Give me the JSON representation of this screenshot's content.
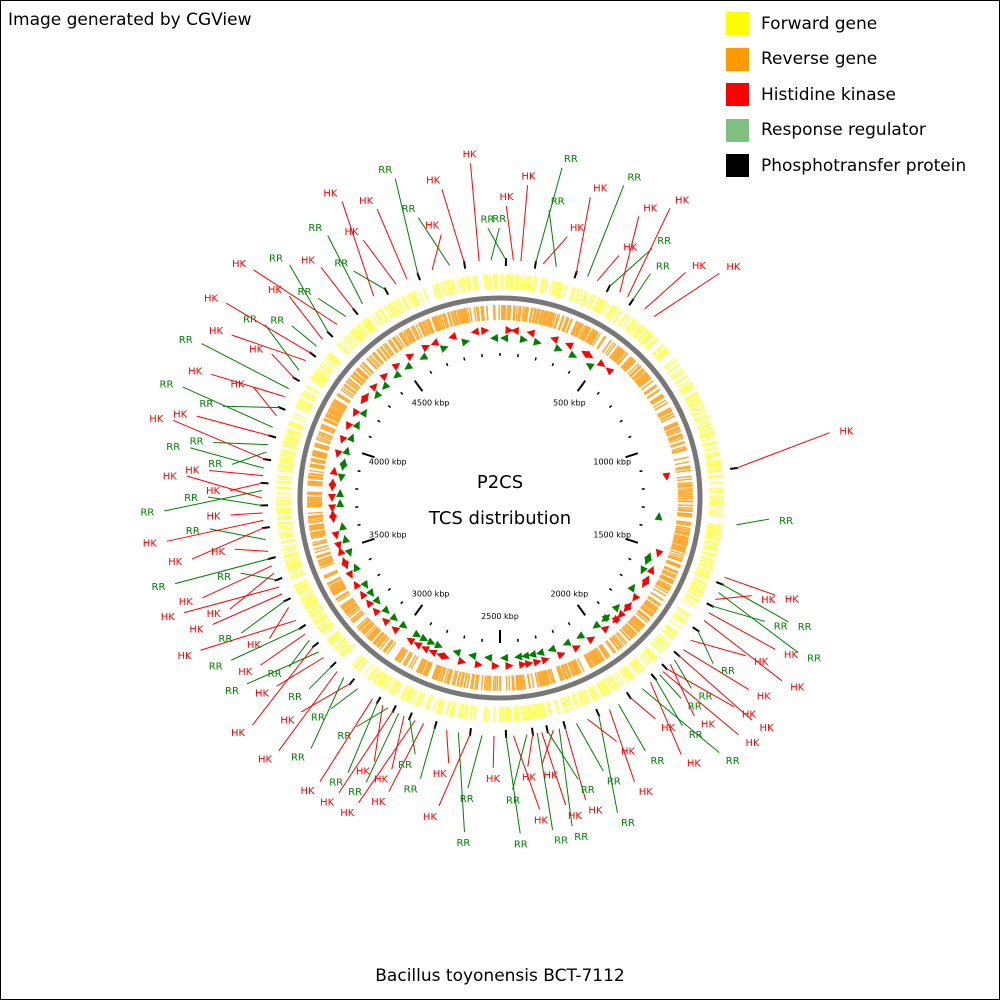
{
  "credit": "Image generated by CGView",
  "legend": [
    {
      "label": "Forward gene",
      "color": "#ffff00"
    },
    {
      "label": "Reverse gene",
      "color": "#ff9900"
    },
    {
      "label": "Histidine kinase",
      "color": "#ff0000"
    },
    {
      "label": "Response regulator",
      "color": "#7fbf7f"
    },
    {
      "label": "Phosphotransfer protein",
      "color": "#000000"
    }
  ],
  "center_title": [
    "P2CS",
    "TCS distribution"
  ],
  "caption": "Bacillus toyonensis BCT-7112",
  "colors": {
    "forward": "#ffff66",
    "reverse": "#ffaa33",
    "backbone": "#777777",
    "hk": "#ff0000",
    "rr": "#008000",
    "hk_arrow": "#ff0000",
    "rr_arrow": "#008000"
  },
  "genome": {
    "length_kbp": 5000,
    "ticks_kbp": [
      500,
      1000,
      1500,
      2000,
      2500,
      3000,
      3500,
      4000,
      4500
    ],
    "tick_unit": "kbp"
  },
  "features": [
    {
      "type": "RR",
      "kbp": 20
    },
    {
      "type": "HK",
      "kbp": 45
    },
    {
      "type": "HK",
      "kbp": 70
    },
    {
      "type": "RR",
      "kbp": 120
    },
    {
      "type": "HK",
      "kbp": 145
    },
    {
      "type": "RR",
      "kbp": 190
    },
    {
      "type": "HK",
      "kbp": 260
    },
    {
      "type": "RR",
      "kbp": 300
    },
    {
      "type": "HK",
      "kbp": 335
    },
    {
      "type": "RR",
      "kbp": 380
    },
    {
      "type": "HK",
      "kbp": 420
    },
    {
      "type": "HK",
      "kbp": 450
    },
    {
      "type": "RR",
      "kbp": 470
    },
    {
      "type": "HK",
      "kbp": 520
    },
    {
      "type": "HK",
      "kbp": 560
    },
    {
      "type": "HK",
      "kbp": 1150
    },
    {
      "type": "RR",
      "kbp": 1340
    },
    {
      "type": "HK",
      "kbp": 1520
    },
    {
      "type": "RR",
      "kbp": 1545
    },
    {
      "type": "RR",
      "kbp": 1575
    },
    {
      "type": "HK",
      "kbp": 1600
    },
    {
      "type": "RR",
      "kbp": 1625
    },
    {
      "type": "HK",
      "kbp": 1650
    },
    {
      "type": "HK",
      "kbp": 1680
    },
    {
      "type": "RR",
      "kbp": 1720
    },
    {
      "type": "HK",
      "kbp": 1760
    },
    {
      "type": "HK",
      "kbp": 1800
    },
    {
      "type": "HK",
      "kbp": 1825
    },
    {
      "type": "RR",
      "kbp": 1845
    },
    {
      "type": "HK",
      "kbp": 1865
    },
    {
      "type": "HK",
      "kbp": 1885
    },
    {
      "type": "HK",
      "kbp": 1900
    },
    {
      "type": "RR",
      "kbp": 1915
    },
    {
      "type": "RR",
      "kbp": 1935
    },
    {
      "type": "HK",
      "kbp": 1955
    },
    {
      "type": "RR",
      "kbp": 1990
    },
    {
      "type": "HK",
      "kbp": 2040
    },
    {
      "type": "RR",
      "kbp": 2085
    },
    {
      "type": "HK",
      "kbp": 2120
    },
    {
      "type": "RR",
      "kbp": 2160
    },
    {
      "type": "HK",
      "kbp": 2200
    },
    {
      "type": "RR",
      "kbp": 2240
    },
    {
      "type": "HK",
      "kbp": 2280
    },
    {
      "type": "RR",
      "kbp": 2300
    },
    {
      "type": "HK",
      "kbp": 2320
    },
    {
      "type": "RR",
      "kbp": 2340
    },
    {
      "type": "HK",
      "kbp": 2360
    },
    {
      "type": "RR",
      "kbp": 2375
    },
    {
      "type": "HK",
      "kbp": 2390
    },
    {
      "type": "RR",
      "kbp": 2410
    },
    {
      "type": "HK",
      "kbp": 2455
    },
    {
      "type": "RR",
      "kbp": 2480
    },
    {
      "type": "HK",
      "kbp": 2520
    },
    {
      "type": "RR",
      "kbp": 2560
    },
    {
      "type": "HK",
      "kbp": 2600
    },
    {
      "type": "RR",
      "kbp": 2640
    },
    {
      "type": "HK",
      "kbp": 2680
    },
    {
      "type": "RR",
      "kbp": 2720
    },
    {
      "type": "HK",
      "kbp": 2760
    },
    {
      "type": "HK",
      "kbp": 2790
    },
    {
      "type": "RR",
      "kbp": 2810
    },
    {
      "type": "HK",
      "kbp": 2830
    },
    {
      "type": "RR",
      "kbp": 2850
    },
    {
      "type": "HK",
      "kbp": 2870
    },
    {
      "type": "RR",
      "kbp": 2890
    },
    {
      "type": "HK",
      "kbp": 2910
    },
    {
      "type": "RR",
      "kbp": 2930
    },
    {
      "type": "HK",
      "kbp": 2950
    },
    {
      "type": "RR",
      "kbp": 3010
    },
    {
      "type": "HK",
      "kbp": 3040
    },
    {
      "type": "RR",
      "kbp": 3070
    },
    {
      "type": "HK",
      "kbp": 3100
    },
    {
      "type": "RR",
      "kbp": 3125
    },
    {
      "type": "HK",
      "kbp": 3165
    },
    {
      "type": "RR",
      "kbp": 3190
    },
    {
      "type": "HK",
      "kbp": 3215
    },
    {
      "type": "RR",
      "kbp": 3240
    },
    {
      "type": "HK",
      "kbp": 3265
    },
    {
      "type": "RR",
      "kbp": 3290
    },
    {
      "type": "HK",
      "kbp": 3320
    },
    {
      "type": "HK",
      "kbp": 3370
    },
    {
      "type": "RR",
      "kbp": 3395
    },
    {
      "type": "HK",
      "kbp": 3420
    },
    {
      "type": "HK",
      "kbp": 3445
    },
    {
      "type": "RR",
      "kbp": 3470
    },
    {
      "type": "HK",
      "kbp": 3495
    },
    {
      "type": "HK",
      "kbp": 3520
    },
    {
      "type": "RR",
      "kbp": 3545
    },
    {
      "type": "HK",
      "kbp": 3570
    },
    {
      "type": "RR",
      "kbp": 3610
    },
    {
      "type": "HK",
      "kbp": 3650
    },
    {
      "type": "HK",
      "kbp": 3675
    },
    {
      "type": "HK",
      "kbp": 3700
    },
    {
      "type": "RR",
      "kbp": 3725
    },
    {
      "type": "HK",
      "kbp": 3750
    },
    {
      "type": "RR",
      "kbp": 3775
    },
    {
      "type": "HK",
      "kbp": 3800
    },
    {
      "type": "HK",
      "kbp": 3825
    },
    {
      "type": "RR",
      "kbp": 3850
    },
    {
      "type": "HK",
      "kbp": 3880
    },
    {
      "type": "RR",
      "kbp": 3905
    },
    {
      "type": "RR",
      "kbp": 3930
    },
    {
      "type": "HK",
      "kbp": 3960
    },
    {
      "type": "RR",
      "kbp": 3990
    },
    {
      "type": "HK",
      "kbp": 4030
    },
    {
      "type": "RR",
      "kbp": 4060
    },
    {
      "type": "HK",
      "kbp": 4100
    },
    {
      "type": "RR",
      "kbp": 4130
    },
    {
      "type": "HK",
      "kbp": 4170
    },
    {
      "type": "RR",
      "kbp": 4200
    },
    {
      "type": "HK",
      "kbp": 4240
    },
    {
      "type": "HK",
      "kbp": 4270
    },
    {
      "type": "RR",
      "kbp": 4300
    },
    {
      "type": "HK",
      "kbp": 4330
    },
    {
      "type": "RR",
      "kbp": 4360
    },
    {
      "type": "HK",
      "kbp": 4400
    },
    {
      "type": "RR",
      "kbp": 4440
    },
    {
      "type": "HK",
      "kbp": 4475
    },
    {
      "type": "RR",
      "kbp": 4510
    },
    {
      "type": "HK",
      "kbp": 4555
    },
    {
      "type": "RR",
      "kbp": 4600
    },
    {
      "type": "HK",
      "kbp": 4640
    },
    {
      "type": "HK",
      "kbp": 4680
    },
    {
      "type": "RR",
      "kbp": 4720
    },
    {
      "type": "HK",
      "kbp": 4770
    },
    {
      "type": "RR",
      "kbp": 4830
    },
    {
      "type": "HK",
      "kbp": 4880
    },
    {
      "type": "HK",
      "kbp": 4930
    },
    {
      "type": "RR",
      "kbp": 4970
    }
  ]
}
